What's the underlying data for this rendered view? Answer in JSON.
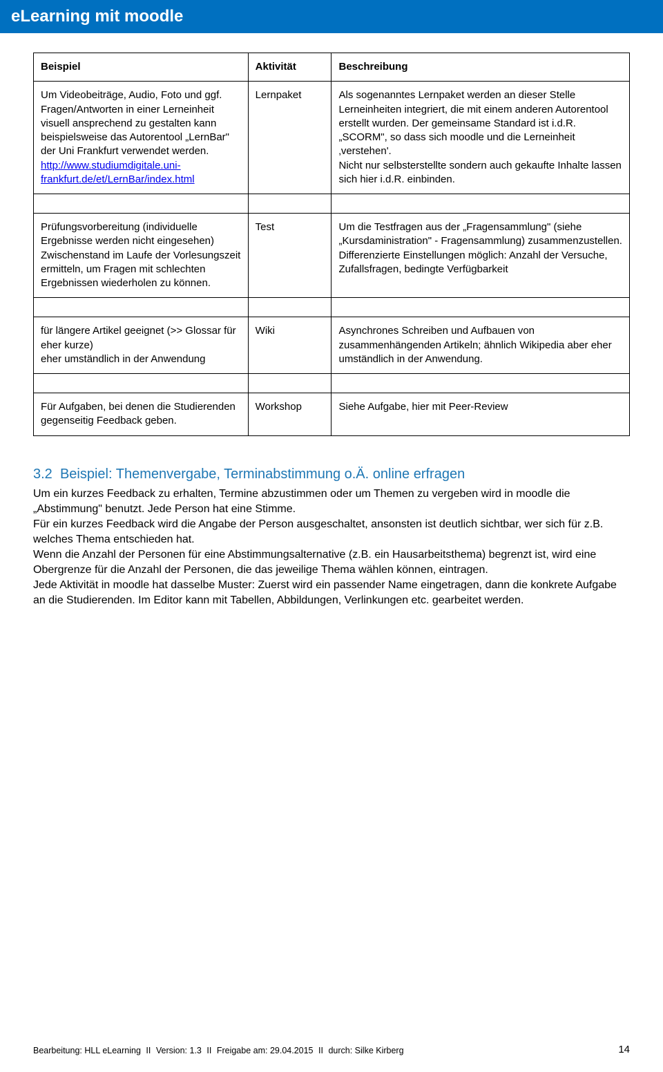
{
  "banner": {
    "title": "eLearning mit moodle"
  },
  "table": {
    "headers": {
      "col1": "Beispiel",
      "col2": "Aktivität",
      "col3": "Beschreibung"
    },
    "rows": [
      {
        "beispiel_part1": "Um Videobeiträge, Audio, Foto und ggf. Fragen/Antworten in einer Lerneinheit visuell ansprechend zu gestalten kann beispielsweise das Autorentool „LernBar\" der Uni Frankfurt verwendet werden. ",
        "link_text": "http://www.studiumdigitale.uni-frankfurt.de/et/LernBar/index.html",
        "aktivitaet": "Lernpaket",
        "beschreibung": "Als sogenanntes Lernpaket werden an dieser Stelle Lerneinheiten integriert, die mit einem anderen Autorentool erstellt wurden. Der gemeinsame Standard ist i.d.R. „SCORM\", so dass sich moodle und die Lerneinheit ‚verstehen'.\nNicht nur selbsterstellte sondern auch gekaufte Inhalte lassen sich hier i.d.R. einbinden."
      },
      {
        "beispiel": "Prüfungsvorbereitung (individuelle Ergebnisse werden nicht eingesehen) Zwischenstand im Laufe der Vorlesungszeit ermitteln, um Fragen mit schlechten Ergebnissen wiederholen zu können.",
        "aktivitaet": "Test",
        "beschreibung": "Um die Testfragen aus der „Fragensammlung\" (siehe „Kursdaministration\"  - Fragensammlung) zusammenzustellen.\nDifferenzierte Einstellungen möglich: Anzahl der Versuche, Zufallsfragen, bedingte Verfügbarkeit"
      },
      {
        "beispiel": "für längere Artikel geeignet (>> Glossar für eher kurze)\neher umständlich in der Anwendung",
        "aktivitaet": "Wiki",
        "beschreibung": "Asynchrones Schreiben und Aufbauen von zusammenhängenden Artikeln; ähnlich Wikipedia aber eher umständlich in der Anwendung."
      },
      {
        "beispiel": "Für Aufgaben, bei denen die Studierenden gegenseitig Feedback geben.",
        "aktivitaet": "Workshop",
        "beschreibung": "Siehe Aufgabe, hier mit Peer-Review"
      }
    ]
  },
  "section": {
    "number": "3.2",
    "title": "Beispiel: Themenvergabe, Terminabstimmung o.Ä. online erfragen",
    "body": "Um ein kurzes Feedback zu erhalten, Termine abzustimmen oder um Themen zu vergeben wird in moodle die „Abstimmung\" benutzt. Jede Person hat eine Stimme.\nFür ein kurzes Feedback wird die Angabe der Person ausgeschaltet, ansonsten ist deutlich sichtbar, wer sich für z.B. welches Thema entschieden hat.\nWenn die Anzahl der Personen für eine Abstimmungsalternative (z.B. ein Hausarbeitsthema) begrenzt ist, wird eine Obergrenze für die Anzahl der Personen, die das jeweilige Thema wählen können, eintragen.\nJede Aktivität in moodle hat dasselbe Muster: Zuerst wird ein passender Name eingetragen, dann die konkrete Aufgabe an die Studierenden. Im Editor kann mit Tabellen, Abbildungen, Verlinkungen etc. gearbeitet werden."
  },
  "footer": {
    "bearbeitung_label": "Bearbeitung:",
    "bearbeitung_value": "HLL eLearning",
    "version_label": "Version:",
    "version_value": "1.3",
    "freigabe_label": "Freigabe am:",
    "freigabe_value": "29.04.2015",
    "durch_label": "durch:",
    "durch_value": "Silke Kirberg",
    "page_number": "14"
  }
}
